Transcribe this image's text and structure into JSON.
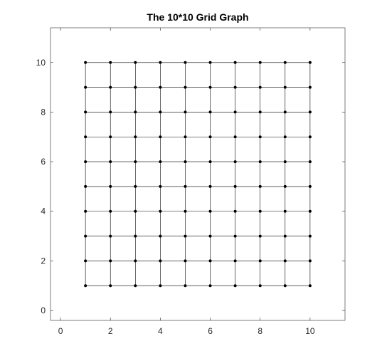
{
  "chart_data": {
    "type": "scatter",
    "title": "The 10*10 Grid Graph",
    "xlabel": "",
    "ylabel": "",
    "xlim": [
      -0.4,
      11.4
    ],
    "ylim": [
      -0.4,
      11.4
    ],
    "xticks": [
      0,
      2,
      4,
      6,
      8,
      10
    ],
    "yticks": [
      0,
      2,
      4,
      6,
      8,
      10
    ],
    "xtick_labels": [
      "0",
      "2",
      "4",
      "6",
      "8",
      "10"
    ],
    "ytick_labels": [
      "0",
      "2",
      "4",
      "6",
      "8",
      "10"
    ],
    "grid": false,
    "nodes": {
      "x": [
        1,
        2,
        3,
        4,
        5,
        6,
        7,
        8,
        9,
        10
      ],
      "y": [
        1,
        2,
        3,
        4,
        5,
        6,
        7,
        8,
        9,
        10
      ],
      "count": 100
    },
    "edges": "4-neighbour lattice (horizontal and vertical connections between adjacent nodes)",
    "colors": {
      "node": "#000000",
      "edge": "#000000",
      "axes": "#262626",
      "background": "#ffffff"
    }
  }
}
